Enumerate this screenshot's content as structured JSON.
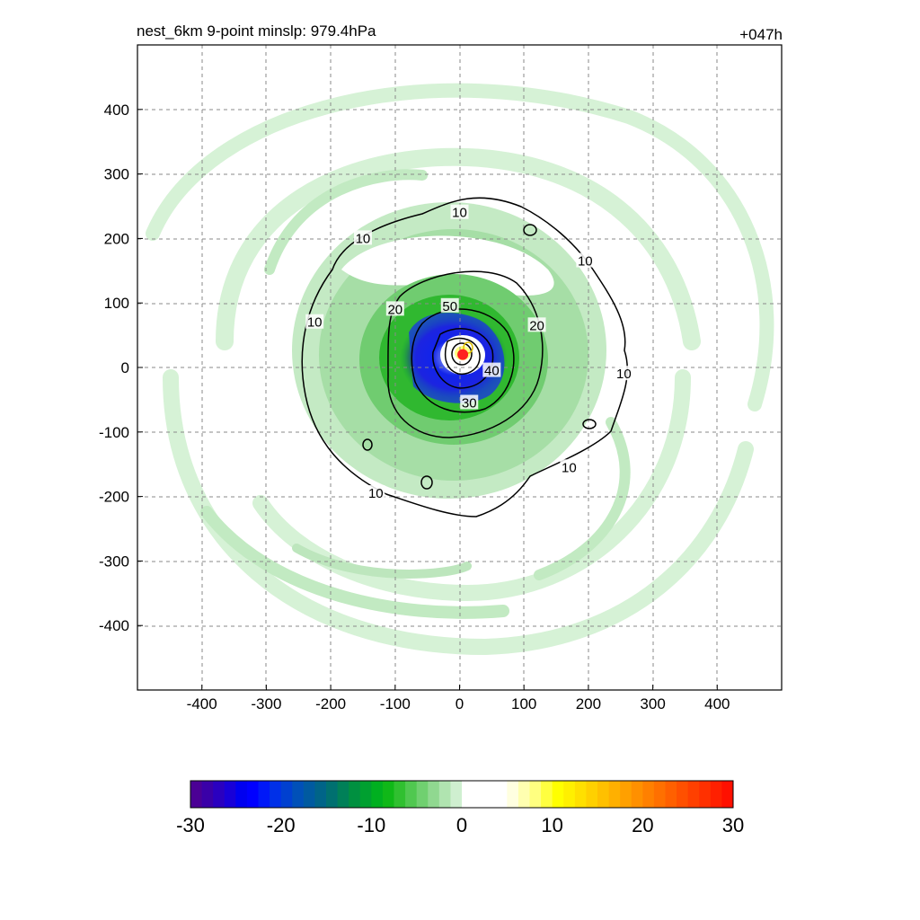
{
  "chart_data": {
    "type": "heatmap",
    "title": "nest_6km  9-point minslp: 979.4hPa",
    "forecast_hour": "+047h",
    "x_ticks": [
      "-400",
      "-300",
      "-200",
      "-100",
      "0",
      "100",
      "200",
      "300",
      "400"
    ],
    "y_ticks": [
      "400",
      "300",
      "200",
      "100",
      "0",
      "-100",
      "-200",
      "-300",
      "-400"
    ],
    "x_tick_values": [
      -400,
      -300,
      -200,
      -100,
      0,
      100,
      200,
      300,
      400
    ],
    "y_tick_values": [
      400,
      300,
      200,
      100,
      0,
      -100,
      -200,
      -300,
      -400
    ],
    "xlim": [
      -500,
      500
    ],
    "ylim": [
      -500,
      500
    ],
    "grid": true,
    "center_marker": {
      "x": 5,
      "y": 20,
      "color": "#ff2020"
    },
    "contours": [
      {
        "level": 10,
        "label": "10",
        "label_positions": [
          [
            0,
            240
          ],
          [
            -150,
            200
          ],
          [
            195,
            165
          ],
          [
            -225,
            70
          ],
          [
            255,
            -10
          ],
          [
            170,
            -155
          ],
          [
            -130,
            -195
          ]
        ]
      },
      {
        "level": 20,
        "label": "20",
        "label_positions": [
          [
            -100,
            90
          ],
          [
            120,
            65
          ]
        ]
      },
      {
        "level": 30,
        "label": "30",
        "label_positions": [
          [
            15,
            -55
          ]
        ]
      },
      {
        "level": 40,
        "label": "40",
        "label_positions": [
          [
            50,
            -5
          ]
        ]
      },
      {
        "level": 50,
        "label": "50",
        "label_positions": [
          [
            -15,
            95
          ]
        ]
      }
    ],
    "colorbar": {
      "ticks": [
        "-30",
        "-20",
        "-10",
        "0",
        "10",
        "20",
        "30"
      ],
      "tick_values": [
        -30,
        -20,
        -10,
        0,
        10,
        20,
        30
      ],
      "range": [
        -30,
        30
      ],
      "colors": [
        "#4b0095",
        "#3a00a8",
        "#2a00c0",
        "#1800d8",
        "#0000f0",
        "#0000ff",
        "#0018f8",
        "#0030e8",
        "#0040d0",
        "#0050b8",
        "#005aa0",
        "#006488",
        "#007070",
        "#008058",
        "#009040",
        "#00a030",
        "#00b020",
        "#10b818",
        "#30c030",
        "#50c850",
        "#70d070",
        "#90d890",
        "#b0e4b0",
        "#cfefd0",
        "#ffffff",
        "#ffffff",
        "#ffffff",
        "#ffffff",
        "#ffffe0",
        "#ffffb0",
        "#ffff80",
        "#ffff40",
        "#ffff00",
        "#fff000",
        "#ffe000",
        "#ffd000",
        "#ffc000",
        "#ffb000",
        "#ffa000",
        "#ff9000",
        "#ff8000",
        "#ff7000",
        "#ff6000",
        "#ff5000",
        "#ff4000",
        "#ff3000",
        "#ff2000",
        "#ff1000"
      ]
    }
  }
}
